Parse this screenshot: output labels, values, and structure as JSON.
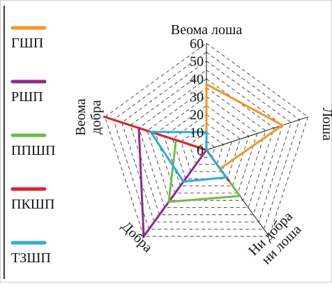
{
  "chart_data": {
    "type": "radar",
    "axes": [
      "Веома лоша",
      "Лоша",
      "Ни добра ни лоша",
      "Добра",
      "Веома добра"
    ],
    "axis_label_lines": [
      [
        "Веома лоша"
      ],
      [
        "Лоша"
      ],
      [
        "Ни добра",
        "ни лоша"
      ],
      [
        "Добра"
      ],
      [
        "Веома",
        "добра"
      ]
    ],
    "scale": {
      "min": 0,
      "max": 60,
      "step": 5,
      "tick_labels": [
        0,
        10,
        20,
        30,
        40,
        50,
        60
      ]
    },
    "grid": true,
    "legend_position": "left",
    "series": [
      {
        "name": "ГШП",
        "color": "#f7941d",
        "values": [
          37,
          45,
          13,
          0,
          0
        ]
      },
      {
        "name": "РШП",
        "color": "#92278f",
        "values": [
          0,
          0,
          0,
          60,
          40
        ]
      },
      {
        "name": "ППШП",
        "color": "#6dbd45",
        "values": [
          0,
          0,
          32,
          36,
          18
        ]
      },
      {
        "name": "ПКШП",
        "color": "#ed1c24",
        "values": [
          0,
          0,
          22,
          0,
          61
        ]
      },
      {
        "name": "ТЗШП",
        "color": "#29abe2",
        "values": [
          10,
          0,
          19,
          22,
          33
        ]
      }
    ]
  }
}
